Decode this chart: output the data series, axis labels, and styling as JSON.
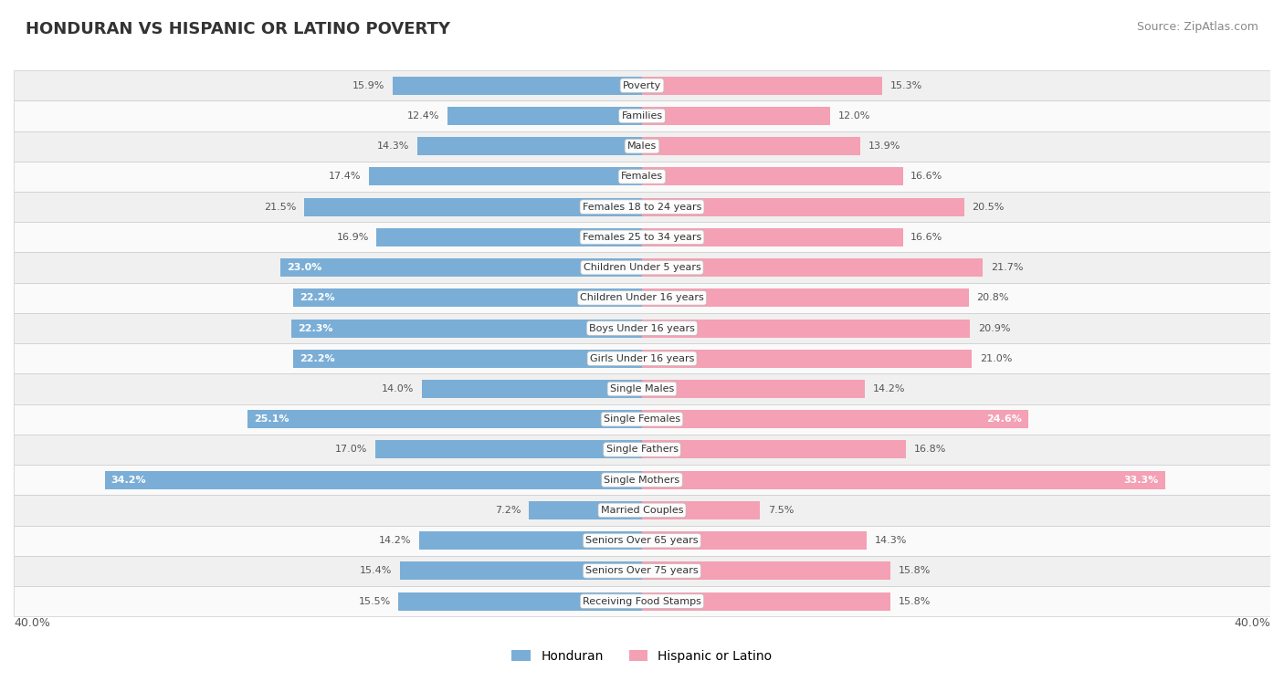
{
  "title": "HONDURAN VS HISPANIC OR LATINO POVERTY",
  "source": "Source: ZipAtlas.com",
  "categories": [
    "Poverty",
    "Families",
    "Males",
    "Females",
    "Females 18 to 24 years",
    "Females 25 to 34 years",
    "Children Under 5 years",
    "Children Under 16 years",
    "Boys Under 16 years",
    "Girls Under 16 years",
    "Single Males",
    "Single Females",
    "Single Fathers",
    "Single Mothers",
    "Married Couples",
    "Seniors Over 65 years",
    "Seniors Over 75 years",
    "Receiving Food Stamps"
  ],
  "honduran": [
    15.9,
    12.4,
    14.3,
    17.4,
    21.5,
    16.9,
    23.0,
    22.2,
    22.3,
    22.2,
    14.0,
    25.1,
    17.0,
    34.2,
    7.2,
    14.2,
    15.4,
    15.5
  ],
  "hispanic": [
    15.3,
    12.0,
    13.9,
    16.6,
    20.5,
    16.6,
    21.7,
    20.8,
    20.9,
    21.0,
    14.2,
    24.6,
    16.8,
    33.3,
    7.5,
    14.3,
    15.8,
    15.8
  ],
  "honduran_color": "#7aaed6",
  "hispanic_color": "#f4a0b5",
  "row_bg_even": "#f0f0f0",
  "row_bg_odd": "#fafafa",
  "text_color_outside": "#555555",
  "max_val": 40.0,
  "legend_honduran": "Honduran",
  "legend_hispanic": "Hispanic or Latino",
  "bar_height": 0.6,
  "row_sep_color": "#cccccc"
}
